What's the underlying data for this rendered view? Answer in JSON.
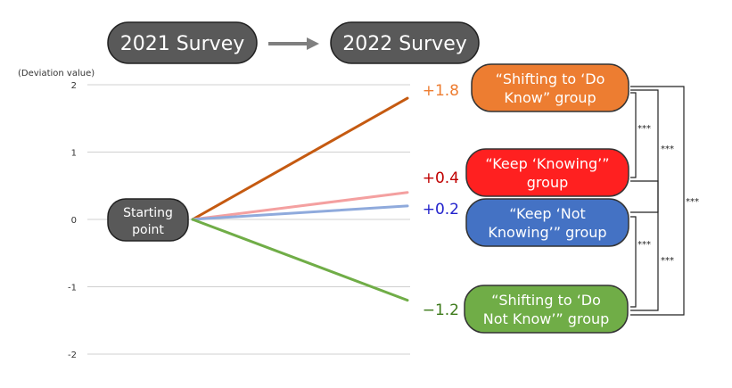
{
  "header": {
    "from_label": "2021 Survey",
    "to_label": "2022 Survey"
  },
  "start_label_lines": [
    "Starting",
    "point"
  ],
  "chart_data": {
    "type": "line",
    "ylabel": "(Deviation value)",
    "ylim": [
      -2,
      2
    ],
    "y_ticks": [
      "2",
      "1",
      "0",
      "-1",
      "-2"
    ],
    "x": [
      "2021 Survey",
      "2022 Survey"
    ],
    "series": [
      {
        "name": "“Shifting to ‘Do Know” group",
        "values": [
          0,
          1.8
        ],
        "value_label": "+1.8",
        "color": "#c55a11",
        "text_color": "#ed7d31",
        "box_color": "#ed7d31",
        "box_lines": [
          "“Shifting to ‘Do",
          "Know” group"
        ]
      },
      {
        "name": "“Keep ‘Knowing’” group",
        "values": [
          0,
          0.4
        ],
        "value_label": "+0.4",
        "color": "#f4a0a0",
        "text_color": "#c00000",
        "box_color": "#ff2020",
        "box_lines": [
          "“Keep ‘Knowing’”",
          "group"
        ]
      },
      {
        "name": "“Keep ‘Not Knowing’” group",
        "values": [
          0,
          0.2
        ],
        "value_label": "+0.2",
        "color": "#8faadc",
        "text_color": "#2222cc",
        "box_color": "#4472c4",
        "box_lines": [
          "“Keep ‘Not",
          "Knowing’” group"
        ]
      },
      {
        "name": "“Shifting to ‘Do Not Know’” group",
        "values": [
          0,
          -1.2
        ],
        "value_label": "−1.2",
        "color": "#70ad47",
        "text_color": "#3d7a1a",
        "box_color": "#70ad47",
        "box_lines": [
          "“Shifting to ‘Do",
          "Not Know’” group"
        ]
      }
    ],
    "significance": [
      {
        "between": [
          "“Shifting to ‘Do Know” group",
          "“Keep ‘Knowing’” group"
        ],
        "label": "***"
      },
      {
        "between": [
          "“Shifting to ‘Do Know” group",
          "“Keep ‘Not Knowing’” group"
        ],
        "label": "***"
      },
      {
        "between": [
          "“Keep ‘Not Knowing’” group",
          "“Shifting to ‘Do Not Know’” group"
        ],
        "label": "***"
      },
      {
        "between": [
          "“Keep ‘Knowing’” group",
          "“Shifting to ‘Do Not Know’” group"
        ],
        "label": "***"
      },
      {
        "between": [
          "“Shifting to ‘Do Know” group",
          "“Shifting to ‘Do Not Know’” group"
        ],
        "label": "***"
      }
    ],
    "grid": true
  }
}
